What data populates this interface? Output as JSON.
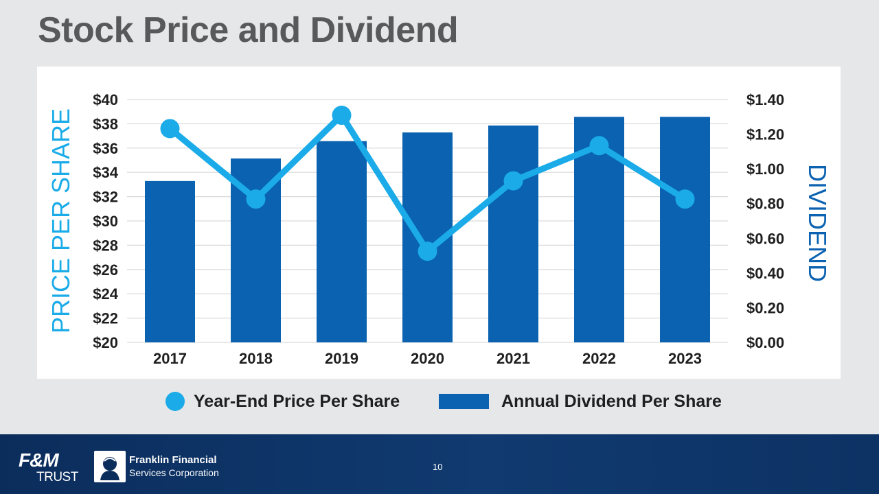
{
  "slide": {
    "title": "Stock Price and Dividend",
    "page_number": "10"
  },
  "footer": {
    "fm_logo_top": "F&M",
    "fm_logo_bottom": "TRUST",
    "company_line1": "Franklin Financial",
    "company_line2": "Services Corporation"
  },
  "colors": {
    "bar": "#0a62b0",
    "line": "#1aabe8",
    "price_axis_title": "#1aabe8",
    "dividend_axis_title": "#0a62b0",
    "grid": "#d9d9d9",
    "footer": "#0b2d5c"
  },
  "chart_data": {
    "type": "bar+line",
    "categories": [
      "2017",
      "2018",
      "2019",
      "2020",
      "2021",
      "2022",
      "2023"
    ],
    "series": [
      {
        "name": "Annual Dividend Per Share",
        "type": "bar",
        "axis": "right",
        "values": [
          0.93,
          1.06,
          1.16,
          1.21,
          1.25,
          1.3,
          1.3
        ]
      },
      {
        "name": "Year-End Price Per Share",
        "type": "line",
        "axis": "left",
        "values": [
          37.6,
          31.8,
          38.7,
          27.5,
          33.3,
          36.2,
          31.8
        ]
      }
    ],
    "left_axis": {
      "title": "PRICE PER SHARE",
      "range": [
        20,
        40
      ],
      "ticks": [
        "$20",
        "$22",
        "$24",
        "$26",
        "$28",
        "$30",
        "$32",
        "$34",
        "$36",
        "$38",
        "$40"
      ]
    },
    "right_axis": {
      "title": "DIVIDEND",
      "range": [
        0,
        1.4
      ],
      "ticks": [
        "$0.00",
        "$0.20",
        "$0.40",
        "$0.60",
        "$0.80",
        "$1.00",
        "$1.20",
        "$1.40"
      ]
    },
    "grid": true,
    "legend": {
      "position": "bottom",
      "items": [
        "Year-End Price Per Share",
        "Annual Dividend Per Share"
      ]
    }
  }
}
